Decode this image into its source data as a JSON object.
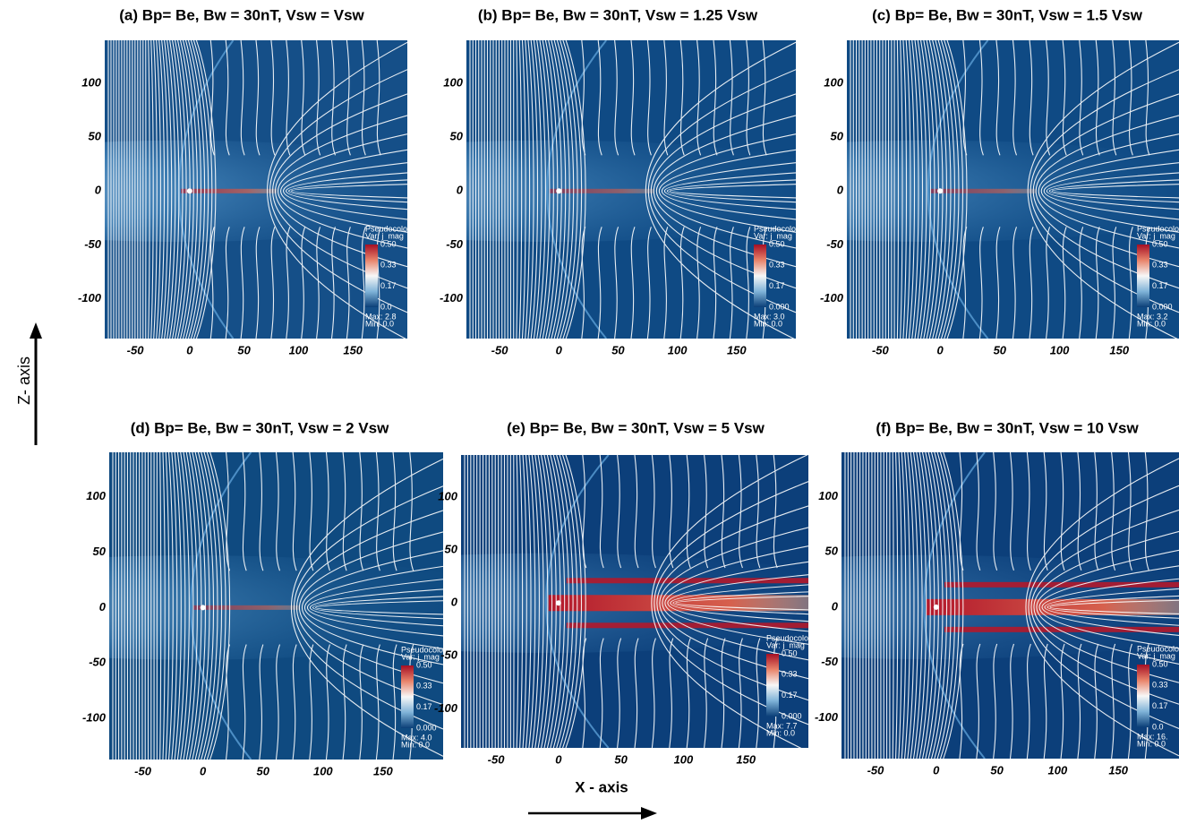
{
  "figure": {
    "z_axis_label": "Z- axis",
    "x_axis_label": "X - axis",
    "panels": [
      {
        "title": "(a) Bp= Be, Bw = 30nT, Vsw = Vsw",
        "xticks": [
          -50,
          0,
          50,
          100,
          150
        ],
        "yticks": [
          100,
          50,
          0,
          -50,
          -100
        ],
        "colorbar": {
          "header": "Pseudocolor",
          "var": "Var: j_mag",
          "ticks": [
            "0.50",
            "0.33",
            "0.17",
            "0.0"
          ],
          "max": "Max: 2.8",
          "min": "Min: 0.0"
        }
      },
      {
        "title": "(b) Bp= Be, Bw = 30nT, Vsw = 1.25 Vsw",
        "xticks": [
          -50,
          0,
          50,
          100,
          150
        ],
        "yticks": [
          100,
          50,
          0,
          -50,
          -100
        ],
        "colorbar": {
          "header": "Pseudocolor",
          "var": "Var: j_mag",
          "ticks": [
            "0.50",
            "0.33",
            "0.17",
            "0.000"
          ],
          "max": "Max: 3.0",
          "min": "Min: 0.0"
        }
      },
      {
        "title": "(c) Bp= Be, Bw = 30nT, Vsw = 1.5 Vsw",
        "xticks": [
          -50,
          0,
          50,
          100,
          150
        ],
        "yticks": [
          100,
          50,
          0,
          -50,
          -100
        ],
        "colorbar": {
          "header": "Pseudocolor",
          "var": "Var: j_mag",
          "ticks": [
            "0.50",
            "0.33",
            "0.17",
            "0.000"
          ],
          "max": "Max: 3.2",
          "min": "Min: 0.0"
        }
      },
      {
        "title": "(d)  Bp= Be, Bw = 30nT, Vsw = 2 Vsw",
        "xticks": [
          -50,
          0,
          50,
          100,
          150
        ],
        "yticks": [
          100,
          50,
          0,
          -50,
          -100
        ],
        "colorbar": {
          "header": "Pseudocolor",
          "var": "Var: j_mag",
          "ticks": [
            "0.50",
            "0.33",
            "0.17",
            "0.000"
          ],
          "max": "Max: 4.0",
          "min": "Min: 0.0"
        }
      },
      {
        "title": "(e)  Bp= Be, Bw = 30nT, Vsw = 5 Vsw",
        "xticks": [
          -50,
          0,
          50,
          100,
          150
        ],
        "yticks": [
          100,
          50,
          0,
          -50,
          -100
        ],
        "colorbar": {
          "header": "Pseudocolor",
          "var": "Var: j_mag",
          "ticks": [
            "0.50",
            "0.33",
            "0.17",
            "0.000"
          ],
          "max": "Max: 7.7",
          "min": "Min: 0.0"
        }
      },
      {
        "title": "(f) Bp= Be, Bw = 30nT, Vsw = 10 Vsw",
        "xticks": [
          -50,
          0,
          50,
          100,
          150
        ],
        "yticks": [
          100,
          50,
          0,
          -50,
          -100
        ],
        "colorbar": {
          "header": "Pseudocolor",
          "var": "Var: j_mag",
          "ticks": [
            "0.50",
            "0.33",
            "0.17",
            "0.0"
          ],
          "max": "Max: 16.",
          "min": "Min: 0.0"
        }
      }
    ]
  }
}
